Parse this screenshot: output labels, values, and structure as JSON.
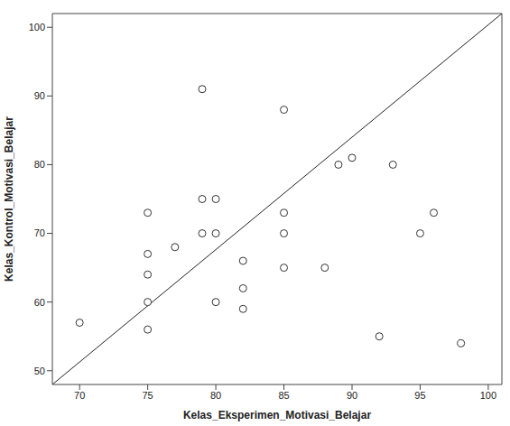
{
  "chart_data": {
    "type": "scatter",
    "x_label": "Kelas_Eksperimen_Motivasi_Belajar",
    "y_label": "Kelas_Kontrol_Motivasi_Belajar",
    "x": [
      70,
      75,
      75,
      75,
      75,
      75,
      77,
      79,
      79,
      79,
      80,
      80,
      80,
      82,
      82,
      82,
      85,
      85,
      85,
      85,
      88,
      89,
      90,
      92,
      93,
      95,
      96,
      98
    ],
    "values": [
      57,
      73,
      67,
      64,
      60,
      56,
      68,
      91,
      75,
      70,
      75,
      70,
      60,
      66,
      62,
      59,
      88,
      73,
      70,
      65,
      65,
      80,
      81,
      55,
      80,
      70,
      73,
      54
    ],
    "xlim": [
      68,
      101
    ],
    "ylim": [
      48,
      102
    ],
    "xticks": [
      70,
      75,
      80,
      85,
      90,
      95,
      100
    ],
    "yticks": [
      50,
      60,
      70,
      80,
      90,
      100
    ],
    "reference_line": {
      "x": [
        68,
        101
      ],
      "y": [
        48,
        102
      ]
    },
    "marker": "circle",
    "color": "#333333",
    "grid": false
  }
}
